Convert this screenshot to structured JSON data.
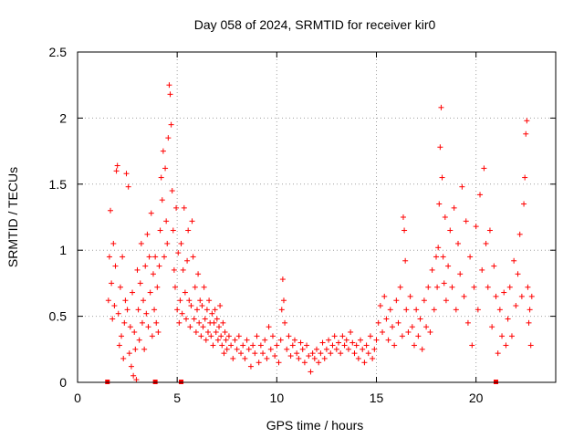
{
  "chart_data": {
    "type": "scatter",
    "title": "Day 058 of 2024, SRMTID for receiver kir0",
    "xlabel": "GPS time / hours",
    "ylabel": "SRMTID / TECUs",
    "xlim": [
      0,
      24
    ],
    "ylim": [
      0,
      2.5
    ],
    "xticks": [
      0,
      5,
      10,
      15,
      20
    ],
    "yticks": [
      0,
      0.5,
      1,
      1.5,
      2,
      2.5
    ],
    "xtick_labels": [
      "0",
      "5",
      "10",
      "15",
      "20"
    ],
    "ytick_labels": [
      "0",
      "0.5",
      "1",
      "1.5",
      "2",
      "2.5"
    ],
    "grid": true,
    "marker": "+",
    "color": "#ff0000",
    "series": [
      {
        "name": "SRMTID",
        "points": [
          [
            1.55,
            0.62
          ],
          [
            1.6,
            0.95
          ],
          [
            1.65,
            1.3
          ],
          [
            1.7,
            0.75
          ],
          [
            1.75,
            0.48
          ],
          [
            1.8,
            1.05
          ],
          [
            1.85,
            0.58
          ],
          [
            1.9,
            0.88
          ],
          [
            1.95,
            1.6
          ],
          [
            2.0,
            1.64
          ],
          [
            2.05,
            0.52
          ],
          [
            2.1,
            0.28
          ],
          [
            2.15,
            0.72
          ],
          [
            2.2,
            0.35
          ],
          [
            2.25,
            0.95
          ],
          [
            2.3,
            0.18
          ],
          [
            2.35,
            0.45
          ],
          [
            2.4,
            0.62
          ],
          [
            2.45,
            1.58
          ],
          [
            2.5,
            0.55
          ],
          [
            2.55,
            1.48
          ],
          [
            2.6,
            0.22
          ],
          [
            2.65,
            0.42
          ],
          [
            2.7,
            0.12
          ],
          [
            2.75,
            0.68
          ],
          [
            2.8,
            0.05
          ],
          [
            2.85,
            0.38
          ],
          [
            2.9,
            0.25
          ],
          [
            2.95,
            0.02
          ],
          [
            3.0,
            0.85
          ],
          [
            3.05,
            0.55
          ],
          [
            3.1,
            0.32
          ],
          [
            3.15,
            0.75
          ],
          [
            3.2,
            1.05
          ],
          [
            3.25,
            0.45
          ],
          [
            3.3,
            0.62
          ],
          [
            3.35,
            0.25
          ],
          [
            3.4,
            0.88
          ],
          [
            3.45,
            0.52
          ],
          [
            3.5,
            1.12
          ],
          [
            3.55,
            0.42
          ],
          [
            3.6,
            0.95
          ],
          [
            3.65,
            0.68
          ],
          [
            3.7,
            1.28
          ],
          [
            3.75,
            0.35
          ],
          [
            3.8,
            0.82
          ],
          [
            3.85,
            0.55
          ],
          [
            3.9,
            0.95
          ],
          [
            3.95,
            0.45
          ],
          [
            4.0,
            0.72
          ],
          [
            4.05,
            0.38
          ],
          [
            4.1,
            0.88
          ],
          [
            4.15,
            1.15
          ],
          [
            4.2,
            1.55
          ],
          [
            4.25,
            1.38
          ],
          [
            4.3,
            1.75
          ],
          [
            4.35,
            0.95
          ],
          [
            4.4,
            1.62
          ],
          [
            4.45,
            1.22
          ],
          [
            4.5,
            1.05
          ],
          [
            4.55,
            1.85
          ],
          [
            4.6,
            2.25
          ],
          [
            4.65,
            2.18
          ],
          [
            4.7,
            1.95
          ],
          [
            4.75,
            1.45
          ],
          [
            4.8,
            1.15
          ],
          [
            4.85,
            0.85
          ],
          [
            4.9,
            0.72
          ],
          [
            4.95,
            1.32
          ],
          [
            5.0,
            0.55
          ],
          [
            5.05,
            0.98
          ],
          [
            5.1,
            0.45
          ],
          [
            5.15,
            0.62
          ],
          [
            5.2,
            1.05
          ],
          [
            5.25,
            0.52
          ],
          [
            5.3,
            0.85
          ],
          [
            5.35,
            1.32
          ],
          [
            5.4,
            0.68
          ],
          [
            5.45,
            0.48
          ],
          [
            5.5,
            0.92
          ],
          [
            5.55,
            1.15
          ],
          [
            5.6,
            0.62
          ],
          [
            5.65,
            0.42
          ],
          [
            5.7,
            0.58
          ],
          [
            5.75,
            1.22
          ],
          [
            5.8,
            0.95
          ],
          [
            5.85,
            0.48
          ],
          [
            5.9,
            0.72
          ],
          [
            5.95,
            0.38
          ],
          [
            6.0,
            0.55
          ],
          [
            6.05,
            0.82
          ],
          [
            6.1,
            0.45
          ],
          [
            6.15,
            0.62
          ],
          [
            6.2,
            0.35
          ],
          [
            6.25,
            0.58
          ],
          [
            6.3,
            0.42
          ],
          [
            6.35,
            0.72
          ],
          [
            6.4,
            0.48
          ],
          [
            6.45,
            0.32
          ],
          [
            6.5,
            0.55
          ],
          [
            6.55,
            0.38
          ],
          [
            6.6,
            0.62
          ],
          [
            6.65,
            0.45
          ],
          [
            6.7,
            0.35
          ],
          [
            6.75,
            0.52
          ],
          [
            6.8,
            0.28
          ],
          [
            6.85,
            0.45
          ],
          [
            6.9,
            0.55
          ],
          [
            6.95,
            0.38
          ],
          [
            7.0,
            0.48
          ],
          [
            7.05,
            0.32
          ],
          [
            7.1,
            0.42
          ],
          [
            7.15,
            0.58
          ],
          [
            7.2,
            0.35
          ],
          [
            7.25,
            0.28
          ],
          [
            7.3,
            0.45
          ],
          [
            7.35,
            0.22
          ],
          [
            7.4,
            0.38
          ],
          [
            7.45,
            0.32
          ],
          [
            7.5,
            0.25
          ],
          [
            7.6,
            0.35
          ],
          [
            7.7,
            0.28
          ],
          [
            7.8,
            0.18
          ],
          [
            7.9,
            0.32
          ],
          [
            8.0,
            0.25
          ],
          [
            8.1,
            0.35
          ],
          [
            8.2,
            0.22
          ],
          [
            8.3,
            0.28
          ],
          [
            8.4,
            0.18
          ],
          [
            8.5,
            0.32
          ],
          [
            8.6,
            0.25
          ],
          [
            8.7,
            0.12
          ],
          [
            8.8,
            0.28
          ],
          [
            8.9,
            0.22
          ],
          [
            9.0,
            0.35
          ],
          [
            9.1,
            0.15
          ],
          [
            9.2,
            0.28
          ],
          [
            9.3,
            0.22
          ],
          [
            9.4,
            0.32
          ],
          [
            9.5,
            0.18
          ],
          [
            9.6,
            0.42
          ],
          [
            9.7,
            0.25
          ],
          [
            9.8,
            0.35
          ],
          [
            9.9,
            0.2
          ],
          [
            10.0,
            0.28
          ],
          [
            10.1,
            0.15
          ],
          [
            10.2,
            0.32
          ],
          [
            10.25,
            0.55
          ],
          [
            10.3,
            0.78
          ],
          [
            10.35,
            0.62
          ],
          [
            10.4,
            0.45
          ],
          [
            10.5,
            0.25
          ],
          [
            10.6,
            0.35
          ],
          [
            10.7,
            0.2
          ],
          [
            10.8,
            0.28
          ],
          [
            10.9,
            0.32
          ],
          [
            11.0,
            0.22
          ],
          [
            11.1,
            0.18
          ],
          [
            11.2,
            0.3
          ],
          [
            11.3,
            0.25
          ],
          [
            11.4,
            0.15
          ],
          [
            11.5,
            0.28
          ],
          [
            11.6,
            0.2
          ],
          [
            11.7,
            0.08
          ],
          [
            11.8,
            0.22
          ],
          [
            11.9,
            0.18
          ],
          [
            12.0,
            0.25
          ],
          [
            12.1,
            0.15
          ],
          [
            12.2,
            0.22
          ],
          [
            12.3,
            0.3
          ],
          [
            12.4,
            0.18
          ],
          [
            12.5,
            0.25
          ],
          [
            12.6,
            0.32
          ],
          [
            12.7,
            0.22
          ],
          [
            12.8,
            0.28
          ],
          [
            12.9,
            0.35
          ],
          [
            13.0,
            0.25
          ],
          [
            13.1,
            0.3
          ],
          [
            13.2,
            0.22
          ],
          [
            13.3,
            0.35
          ],
          [
            13.4,
            0.28
          ],
          [
            13.5,
            0.32
          ],
          [
            13.6,
            0.25
          ],
          [
            13.7,
            0.38
          ],
          [
            13.8,
            0.3
          ],
          [
            13.9,
            0.22
          ],
          [
            14.0,
            0.28
          ],
          [
            14.1,
            0.18
          ],
          [
            14.2,
            0.32
          ],
          [
            14.3,
            0.25
          ],
          [
            14.4,
            0.15
          ],
          [
            14.5,
            0.28
          ],
          [
            14.6,
            0.22
          ],
          [
            14.7,
            0.35
          ],
          [
            14.8,
            0.18
          ],
          [
            14.9,
            0.25
          ],
          [
            15.0,
            0.32
          ],
          [
            15.1,
            0.45
          ],
          [
            15.2,
            0.58
          ],
          [
            15.3,
            0.38
          ],
          [
            15.4,
            0.65
          ],
          [
            15.5,
            0.48
          ],
          [
            15.6,
            0.32
          ],
          [
            15.7,
            0.55
          ],
          [
            15.8,
            0.42
          ],
          [
            15.9,
            0.28
          ],
          [
            16.0,
            0.62
          ],
          [
            16.1,
            0.45
          ],
          [
            16.2,
            0.72
          ],
          [
            16.3,
            0.35
          ],
          [
            16.35,
            1.25
          ],
          [
            16.4,
            1.15
          ],
          [
            16.45,
            0.92
          ],
          [
            16.5,
            0.55
          ],
          [
            16.6,
            0.38
          ],
          [
            16.7,
            0.65
          ],
          [
            16.8,
            0.42
          ],
          [
            16.9,
            0.28
          ],
          [
            17.0,
            0.55
          ],
          [
            17.1,
            0.35
          ],
          [
            17.2,
            0.48
          ],
          [
            17.3,
            0.25
          ],
          [
            17.4,
            0.62
          ],
          [
            17.5,
            0.42
          ],
          [
            17.6,
            0.72
          ],
          [
            17.7,
            0.38
          ],
          [
            17.8,
            0.85
          ],
          [
            17.9,
            0.55
          ],
          [
            18.0,
            0.95
          ],
          [
            18.05,
            0.72
          ],
          [
            18.1,
            1.02
          ],
          [
            18.15,
            1.35
          ],
          [
            18.2,
            1.78
          ],
          [
            18.25,
            2.08
          ],
          [
            18.3,
            1.55
          ],
          [
            18.35,
            0.95
          ],
          [
            18.4,
            0.75
          ],
          [
            18.45,
            1.25
          ],
          [
            18.5,
            0.62
          ],
          [
            18.6,
            0.88
          ],
          [
            18.7,
            1.15
          ],
          [
            18.8,
            0.72
          ],
          [
            18.9,
            1.32
          ],
          [
            19.0,
            0.55
          ],
          [
            19.1,
            1.05
          ],
          [
            19.2,
            0.82
          ],
          [
            19.3,
            1.48
          ],
          [
            19.4,
            0.65
          ],
          [
            19.5,
            1.22
          ],
          [
            19.6,
            0.45
          ],
          [
            19.7,
            0.95
          ],
          [
            19.8,
            0.28
          ],
          [
            19.9,
            0.72
          ],
          [
            20.0,
            1.18
          ],
          [
            20.1,
            0.55
          ],
          [
            20.2,
            1.42
          ],
          [
            20.3,
            0.85
          ],
          [
            20.4,
            1.62
          ],
          [
            20.5,
            1.05
          ],
          [
            20.6,
            0.72
          ],
          [
            20.7,
            1.15
          ],
          [
            20.8,
            0.42
          ],
          [
            20.9,
            0.88
          ],
          [
            21.0,
            0.65
          ],
          [
            21.1,
            0.22
          ],
          [
            21.2,
            0.55
          ],
          [
            21.3,
            0.35
          ],
          [
            21.4,
            0.68
          ],
          [
            21.5,
            0.28
          ],
          [
            21.6,
            0.48
          ],
          [
            21.7,
            0.72
          ],
          [
            21.8,
            0.35
          ],
          [
            21.9,
            0.92
          ],
          [
            22.0,
            0.58
          ],
          [
            22.1,
            0.82
          ],
          [
            22.2,
            1.12
          ],
          [
            22.3,
            0.65
          ],
          [
            22.4,
            1.35
          ],
          [
            22.45,
            1.55
          ],
          [
            22.5,
            1.88
          ],
          [
            22.55,
            1.98
          ],
          [
            22.6,
            0.72
          ],
          [
            22.65,
            0.45
          ],
          [
            22.7,
            0.55
          ],
          [
            22.75,
            0.28
          ],
          [
            22.8,
            0.65
          ]
        ]
      }
    ],
    "gap_markers_x": [
      1.5,
      3.9,
      5.2,
      21.0
    ]
  }
}
